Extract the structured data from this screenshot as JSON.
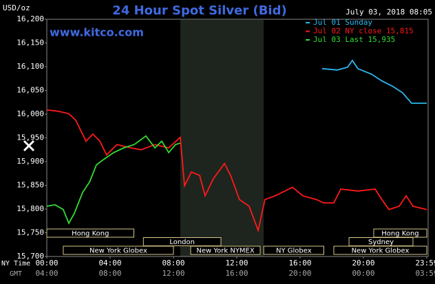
{
  "chart_data": {
    "type": "line",
    "title": "24 Hour Spot Silver (Bid)",
    "y_label": "USD/oz",
    "timestamp": "July 03, 2018 08:05",
    "site": "www.kitco.com",
    "x_row_labels": [
      "NY Time",
      "GMT"
    ],
    "xlim": [
      0,
      24
    ],
    "xticks": [
      {
        "value": 0,
        "label": "00:00"
      },
      {
        "value": 4,
        "label": "04:00"
      },
      {
        "value": 8,
        "label": "08:00"
      },
      {
        "value": 12,
        "label": "12:00"
      },
      {
        "value": 16,
        "label": "16:00"
      },
      {
        "value": 20,
        "label": "20:00"
      },
      {
        "value": 24,
        "label": "23:59"
      }
    ],
    "gmt_ticks": [
      {
        "value": 0,
        "label": "04:00"
      },
      {
        "value": 4,
        "label": "08:00"
      },
      {
        "value": 8,
        "label": "12:00"
      },
      {
        "value": 12,
        "label": "16:00"
      },
      {
        "value": 16,
        "label": "20:00"
      },
      {
        "value": 20,
        "label": "00:00"
      },
      {
        "value": 24,
        "label": "03:59"
      }
    ],
    "ylim": [
      15700,
      16200
    ],
    "yticks": [
      {
        "value": 16200,
        "label": "16,200"
      },
      {
        "value": 16150,
        "label": "16,150"
      },
      {
        "value": 16100,
        "label": "16,100"
      },
      {
        "value": 16050,
        "label": "16,050"
      },
      {
        "value": 16000,
        "label": "16,000"
      },
      {
        "value": 15950,
        "label": "15,950"
      },
      {
        "value": 15900,
        "label": "15,900"
      },
      {
        "value": 15850,
        "label": "15,850"
      },
      {
        "value": 15800,
        "label": "15,800"
      },
      {
        "value": 15750,
        "label": "15,750"
      },
      {
        "value": 15700,
        "label": "15,700"
      }
    ],
    "shaded_range": [
      8.43,
      13.7
    ],
    "sessions": [
      [
        {
          "label": "Hong Kong",
          "start": 0,
          "end": 5.5
        },
        {
          "label": "Hong Kong",
          "start": 20.65,
          "end": 24
        }
      ],
      [
        {
          "label": "London",
          "start": 6.1,
          "end": 11.0
        },
        {
          "label": "Sydney",
          "start": 19.09,
          "end": 23.13
        }
      ],
      [
        {
          "label": "New York Globex",
          "start": 1.04,
          "end": 8.0
        },
        {
          "label": "New York NYMEX",
          "start": 9.09,
          "end": 13.48
        },
        {
          "label": "NY Globex",
          "start": 13.7,
          "end": 17.5
        },
        {
          "label": "New York Globex",
          "start": 18.13,
          "end": 24
        }
      ]
    ],
    "series": [
      {
        "name": "Jul 01 Sunday",
        "color": "#2bb8f0",
        "x": [
          17.39,
          18.35,
          19,
          19.3,
          19.65,
          20.52,
          21.17,
          21.83,
          22.48,
          23.04,
          24
        ],
        "values": [
          16096,
          16093,
          16099,
          16113,
          16096,
          16084,
          16070,
          16059,
          16045,
          16023,
          16023
        ]
      },
      {
        "name": "Jul 02 NY close 15,815",
        "color": "#ff1a1a",
        "x": [
          0,
          0.74,
          1.39,
          1.83,
          2.48,
          2.91,
          3.35,
          3.78,
          4.43,
          5.3,
          5.96,
          6.83,
          7.7,
          8.43,
          8.7,
          9.13,
          9.65,
          10,
          10.52,
          11.22,
          11.61,
          12.17,
          12.78,
          13.35,
          13.78,
          14.43,
          15.52,
          16.17,
          17.04,
          17.48,
          18.13,
          18.57,
          19.65,
          20.74,
          21.17,
          21.61,
          22.26,
          22.7,
          23.13,
          24
        ],
        "values": [
          16009,
          16006,
          16001,
          15987,
          15943,
          15958,
          15943,
          15914,
          15936,
          15929,
          15925,
          15936,
          15929,
          15951,
          15849,
          15878,
          15871,
          15828,
          15864,
          15896,
          15871,
          15820,
          15806,
          15755,
          15820,
          15828,
          15846,
          15828,
          15820,
          15813,
          15813,
          15842,
          15838,
          15842,
          15820,
          15799,
          15806,
          15828,
          15806,
          15799
        ]
      },
      {
        "name": "Jul 03 Last 15,935",
        "color": "#33dd33",
        "x": [
          0,
          0.52,
          1.04,
          1.39,
          1.74,
          2.26,
          2.7,
          3.13,
          3.57,
          4.22,
          4.87,
          5.52,
          6.26,
          6.83,
          7.26,
          7.7,
          8.13,
          8.43
        ],
        "values": [
          15806,
          15809,
          15799,
          15770,
          15791,
          15835,
          15857,
          15893,
          15904,
          15919,
          15929,
          15936,
          15954,
          15929,
          15943,
          15919,
          15936,
          15939
        ]
      }
    ]
  }
}
